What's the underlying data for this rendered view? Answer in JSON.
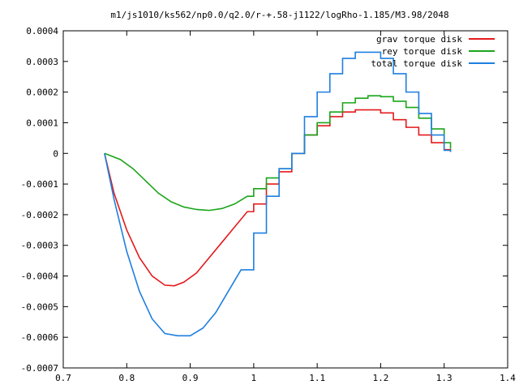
{
  "chart_data": {
    "type": "line",
    "title": "m1/js1010/ks562/np0.0/q2.0/r-+.58-j1122/logRho-1.185/M3.98/2048",
    "xlabel": "",
    "ylabel": "",
    "xlim": [
      0.7,
      1.4
    ],
    "ylim": [
      -0.0007,
      0.0004
    ],
    "x_ticks": [
      "0.7",
      "0.8",
      "0.9",
      "1",
      "1.1",
      "1.2",
      "1.3",
      "1.4"
    ],
    "x_tick_values": [
      0.7,
      0.8,
      0.9,
      1.0,
      1.1,
      1.2,
      1.3,
      1.4
    ],
    "y_ticks": [
      "-0.0007",
      "-0.0006",
      "-0.0005",
      "-0.0004",
      "-0.0003",
      "-0.0002",
      "-0.0001",
      "0",
      "0.0001",
      "0.0002",
      "0.0003",
      "0.0004"
    ],
    "y_tick_values": [
      -0.0007,
      -0.0006,
      -0.0005,
      -0.0004,
      -0.0003,
      -0.0002,
      -0.0001,
      0,
      0.0001,
      0.0002,
      0.0003,
      0.0004
    ],
    "grid": false,
    "legend_position": "top-right",
    "series": [
      {
        "name": "grav torque disk",
        "color": "#e41a1c",
        "x": [
          0.765,
          0.78,
          0.8,
          0.82,
          0.84,
          0.86,
          0.875,
          0.89,
          0.91,
          0.93,
          0.95,
          0.97,
          0.99,
          1.0,
          1.02,
          1.04,
          1.06,
          1.08,
          1.1,
          1.12,
          1.14,
          1.16,
          1.18,
          1.2,
          1.22,
          1.24,
          1.26,
          1.28,
          1.3,
          1.31
        ],
        "y": [
          0.0,
          -0.00013,
          -0.00025,
          -0.00034,
          -0.0004,
          -0.00043,
          -0.000432,
          -0.00042,
          -0.00039,
          -0.00034,
          -0.00029,
          -0.00024,
          -0.00019,
          -0.000165,
          -0.0001,
          -6e-05,
          0.0,
          6e-05,
          9e-05,
          0.00012,
          0.000135,
          0.000142,
          0.000142,
          0.000132,
          0.00011,
          8.5e-05,
          6e-05,
          3.5e-05,
          1.2e-05,
          5e-06
        ]
      },
      {
        "name": "rey torque disk",
        "color": "#1aa51a",
        "x": [
          0.765,
          0.79,
          0.81,
          0.83,
          0.85,
          0.87,
          0.89,
          0.91,
          0.93,
          0.95,
          0.97,
          0.99,
          1.0,
          1.02,
          1.04,
          1.06,
          1.08,
          1.1,
          1.12,
          1.14,
          1.16,
          1.18,
          1.2,
          1.22,
          1.24,
          1.26,
          1.28,
          1.3,
          1.31
        ],
        "y": [
          0.0,
          -2e-05,
          -5e-05,
          -9e-05,
          -0.00013,
          -0.000158,
          -0.000175,
          -0.000183,
          -0.000186,
          -0.00018,
          -0.000165,
          -0.00014,
          -0.000115,
          -8e-05,
          -5e-05,
          0.0,
          6e-05,
          0.0001,
          0.000135,
          0.000165,
          0.00018,
          0.000188,
          0.000185,
          0.00017,
          0.00015,
          0.000115,
          8e-05,
          3.5e-05,
          1.5e-05
        ]
      },
      {
        "name": "total torque disk",
        "color": "#1e7fe0",
        "x": [
          0.765,
          0.78,
          0.8,
          0.82,
          0.84,
          0.86,
          0.88,
          0.9,
          0.92,
          0.94,
          0.96,
          0.98,
          1.0,
          1.02,
          1.04,
          1.06,
          1.08,
          1.1,
          1.12,
          1.14,
          1.16,
          1.18,
          1.2,
          1.22,
          1.24,
          1.26,
          1.28,
          1.3,
          1.31
        ],
        "y": [
          0.0,
          -0.00015,
          -0.00032,
          -0.00045,
          -0.00054,
          -0.0005876,
          -0.000595,
          -0.000595,
          -0.00057,
          -0.00052,
          -0.00045,
          -0.00038,
          -0.00026,
          -0.00014,
          -5e-05,
          0.0,
          0.00012,
          0.0002,
          0.00026,
          0.00031,
          0.00033,
          0.00033,
          0.00031,
          0.00026,
          0.0002,
          0.00013,
          6e-05,
          1e-05,
          5e-06
        ]
      }
    ]
  }
}
